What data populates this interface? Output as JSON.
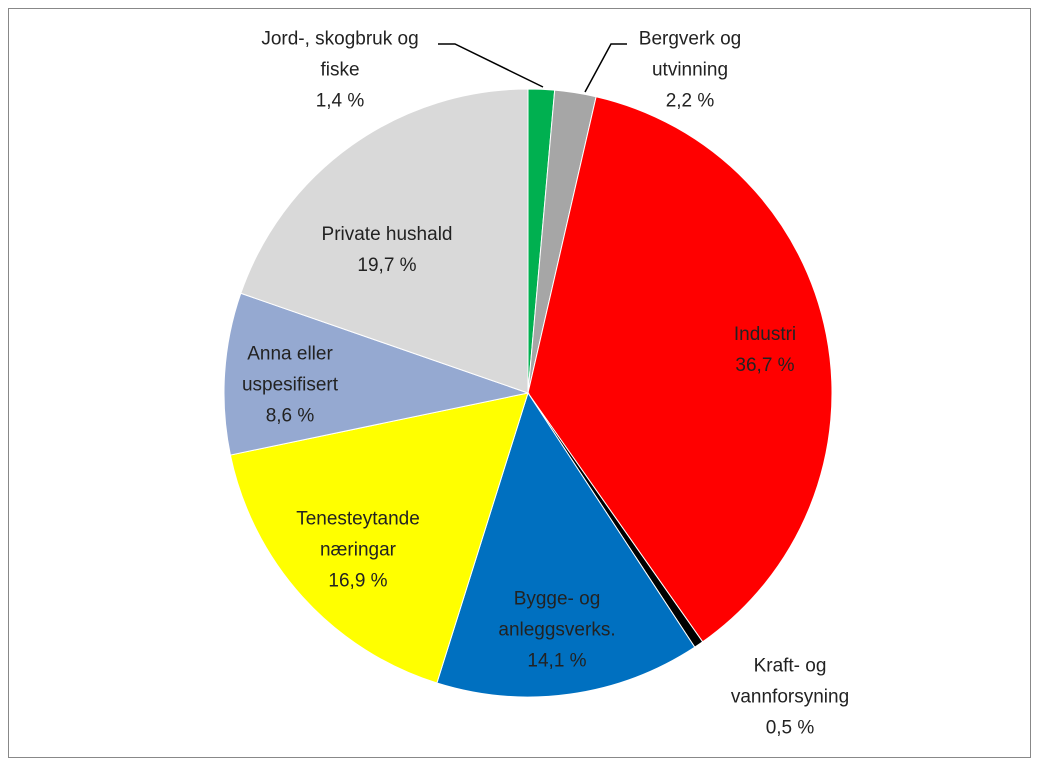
{
  "chart_data": {
    "type": "pie",
    "categories": [
      "Jord-, skogbruk og fiske",
      "Bergverk og utvinning",
      "Industri",
      "Kraft- og vannforsyning",
      "Bygge- og anleggsverks.",
      "Tenesteytande næringar",
      "Anna eller uspesifisert",
      "Private hushald"
    ],
    "values": [
      1.4,
      2.2,
      36.7,
      0.5,
      14.1,
      16.9,
      8.6,
      19.7
    ],
    "value_labels": [
      "1,4 %",
      "2,2 %",
      "36,7 %",
      "0,5 %",
      "14,1 %",
      "16,9 %",
      "8,6 %",
      "19,7 %"
    ],
    "colors": [
      "#00b050",
      "#a6a6a6",
      "#ff0000",
      "#000000",
      "#0070c0",
      "#ffff00",
      "#95a9d1",
      "#d9d9d9"
    ]
  }
}
